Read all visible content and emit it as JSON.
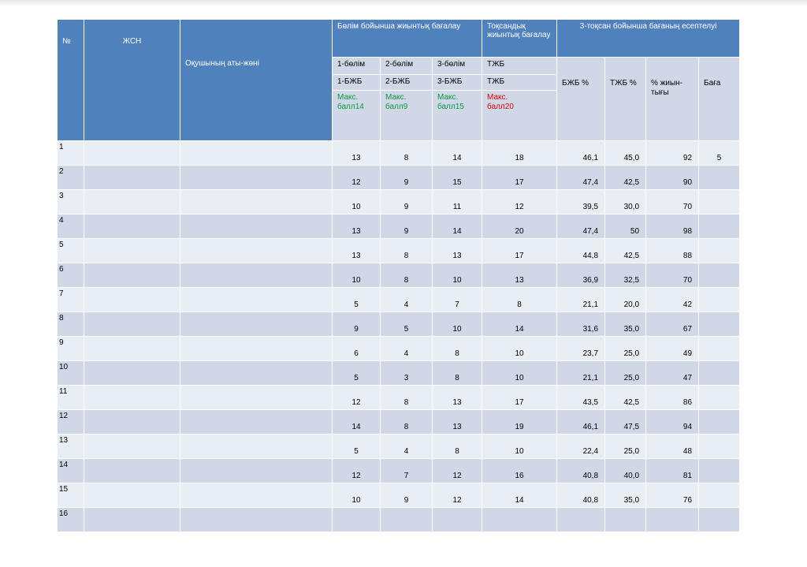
{
  "header": {
    "num": "№",
    "jsn": "ЖСН",
    "name": "Оқушының аты-жөні",
    "section_group": "Бөлім бойынша жиынтық бағалау",
    "term_group": "Тоқсандық жиынтық бағалау",
    "calc_group": "3-тоқсан бойынша бағаның есептелуі",
    "sections": [
      {
        "title": "1-бөлім",
        "code": "1-БЖБ",
        "max_label": "Макс.",
        "max_value": "балл14"
      },
      {
        "title": "2-бөлім",
        "code": "2-БЖБ",
        "max_label": "Макс.",
        "max_value": "балл9"
      },
      {
        "title": "3-бөлім",
        "code": "3-БЖБ",
        "max_label": "Макс.",
        "max_value": "балл15"
      }
    ],
    "term": {
      "title": "ТЖБ",
      "code": "ТЖБ",
      "max_label": "Макс.",
      "max_value": "балл20"
    },
    "bjb_pct": "БЖБ %",
    "tjb_pct": "ТЖБ %",
    "total_pct": "% жиын-тығы",
    "grade": "Баға"
  },
  "rows": [
    {
      "n": "1",
      "s1": "13",
      "s2": "8",
      "s3": "14",
      "tjb": "18",
      "bjb_pct": "46,1",
      "tjb_pct": "45,0",
      "total": "92",
      "grade": "5"
    },
    {
      "n": "2",
      "s1": "12",
      "s2": "9",
      "s3": "15",
      "tjb": "17",
      "bjb_pct": "47,4",
      "tjb_pct": "42,5",
      "total": "90",
      "grade": ""
    },
    {
      "n": "3",
      "s1": "10",
      "s2": "9",
      "s3": "11",
      "tjb": "12",
      "bjb_pct": "39,5",
      "tjb_pct": "30,0",
      "total": "70",
      "grade": ""
    },
    {
      "n": "4",
      "s1": "13",
      "s2": "9",
      "s3": "14",
      "tjb": "20",
      "bjb_pct": "47,4",
      "tjb_pct": "50",
      "total": "98",
      "grade": ""
    },
    {
      "n": "5",
      "s1": "13",
      "s2": "8",
      "s3": "13",
      "tjb": "17",
      "bjb_pct": "44,8",
      "tjb_pct": "42,5",
      "total": "88",
      "grade": ""
    },
    {
      "n": "6",
      "s1": "10",
      "s2": "8",
      "s3": "10",
      "tjb": "13",
      "bjb_pct": "36,9",
      "tjb_pct": "32,5",
      "total": "70",
      "grade": ""
    },
    {
      "n": "7",
      "s1": "5",
      "s2": "4",
      "s3": "7",
      "tjb": "8",
      "bjb_pct": "21,1",
      "tjb_pct": "20,0",
      "total": "42",
      "grade": ""
    },
    {
      "n": "8",
      "s1": "9",
      "s2": "5",
      "s3": "10",
      "tjb": "14",
      "bjb_pct": "31,6",
      "tjb_pct": "35,0",
      "total": "67",
      "grade": ""
    },
    {
      "n": "9",
      "s1": "6",
      "s2": "4",
      "s3": "8",
      "tjb": "10",
      "bjb_pct": "23,7",
      "tjb_pct": "25,0",
      "total": "49",
      "grade": ""
    },
    {
      "n": "10",
      "s1": "5",
      "s2": "3",
      "s3": "8",
      "tjb": "10",
      "bjb_pct": "21,1",
      "tjb_pct": "25,0",
      "total": "47",
      "grade": ""
    },
    {
      "n": "11",
      "s1": "12",
      "s2": "8",
      "s3": "13",
      "tjb": "17",
      "bjb_pct": "43,5",
      "tjb_pct": "42,5",
      "total": "86",
      "grade": ""
    },
    {
      "n": "12",
      "s1": "14",
      "s2": "8",
      "s3": "13",
      "tjb": "19",
      "bjb_pct": "46,1",
      "tjb_pct": "47,5",
      "total": "94",
      "grade": ""
    },
    {
      "n": "13",
      "s1": "5",
      "s2": "4",
      "s3": "8",
      "tjb": "10",
      "bjb_pct": "22,4",
      "tjb_pct": "25,0",
      "total": "48",
      "grade": ""
    },
    {
      "n": "14",
      "s1": "12",
      "s2": "7",
      "s3": "12",
      "tjb": "16",
      "bjb_pct": "40,8",
      "tjb_pct": "40,0",
      "total": "81",
      "grade": ""
    },
    {
      "n": "15",
      "s1": "10",
      "s2": "9",
      "s3": "12",
      "tjb": "14",
      "bjb_pct": "40,8",
      "tjb_pct": "35,0",
      "total": "76",
      "grade": ""
    },
    {
      "n": "16",
      "s1": "",
      "s2": "",
      "s3": "",
      "tjb": "",
      "bjb_pct": "",
      "tjb_pct": "",
      "total": "",
      "grade": ""
    }
  ],
  "colors": {
    "header_blue": "#4f81bd",
    "row_dark": "#d0d8e8",
    "row_light": "#e9edf4",
    "max_green": "#0a9a3a",
    "max_red": "#e00000"
  }
}
